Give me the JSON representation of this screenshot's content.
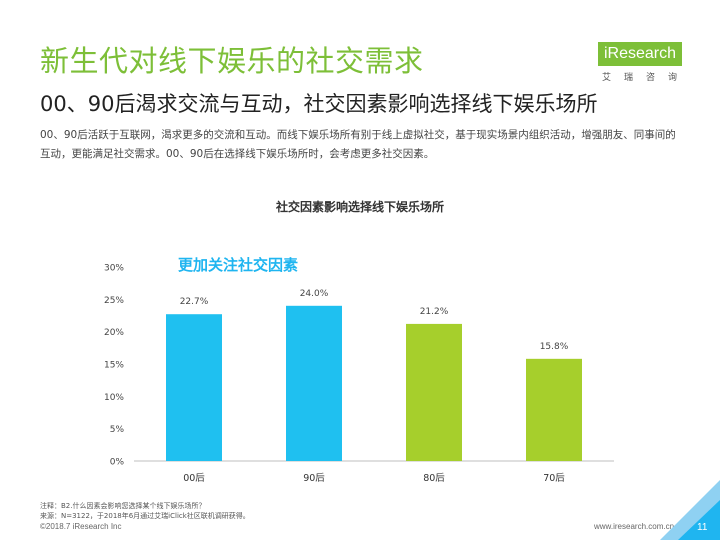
{
  "header": {
    "title": "新生代对线下娱乐的社交需求",
    "subtitle": "00、90后渴求交流与互动，社交因素影响选择线下娱乐场所",
    "description": "00、90后活跃于互联网，渴求更多的交流和互动。而线下娱乐场所有别于线上虚拟社交，基于现实场景内组织活动，增强朋友、同事间的互动，更能满足社交需求。00、90后在选择线下娱乐场所时，会考虑更多社交因素。"
  },
  "logo": {
    "text": "iResearch",
    "sub": "艾瑞咨询"
  },
  "callout": "更加关注社交因素",
  "chart_data": {
    "type": "bar",
    "title": "社交因素影响选择线下娱乐场所",
    "categories": [
      "00后",
      "90后",
      "80后",
      "70后"
    ],
    "values": [
      22.7,
      24.0,
      21.2,
      15.8
    ],
    "value_labels": [
      "22.7%",
      "24.0%",
      "21.2%",
      "15.8%"
    ],
    "colors": [
      "#1fc0f0",
      "#1fc0f0",
      "#a6cf2c",
      "#a6cf2c"
    ],
    "ylim": [
      0,
      30
    ],
    "yticks": [
      0,
      5,
      10,
      15,
      20,
      25,
      30
    ],
    "ytick_labels": [
      "0%",
      "5%",
      "10%",
      "15%",
      "20%",
      "25%",
      "30%"
    ],
    "grid": false,
    "legend": "none"
  },
  "notes": {
    "line1": "注释：B2.什么因素会影响您选择某个线下娱乐场所？",
    "line2": "来源：N=3122，于2018年6月通过艾瑞iClick社区联机调研获得。"
  },
  "footer": {
    "copyright": "©2018.7 iResearch Inc",
    "website": "www.iresearch.com.cn",
    "page": "11"
  },
  "colors": {
    "brand_green": "#7dbf38",
    "accent_blue": "#1fb5f0"
  }
}
